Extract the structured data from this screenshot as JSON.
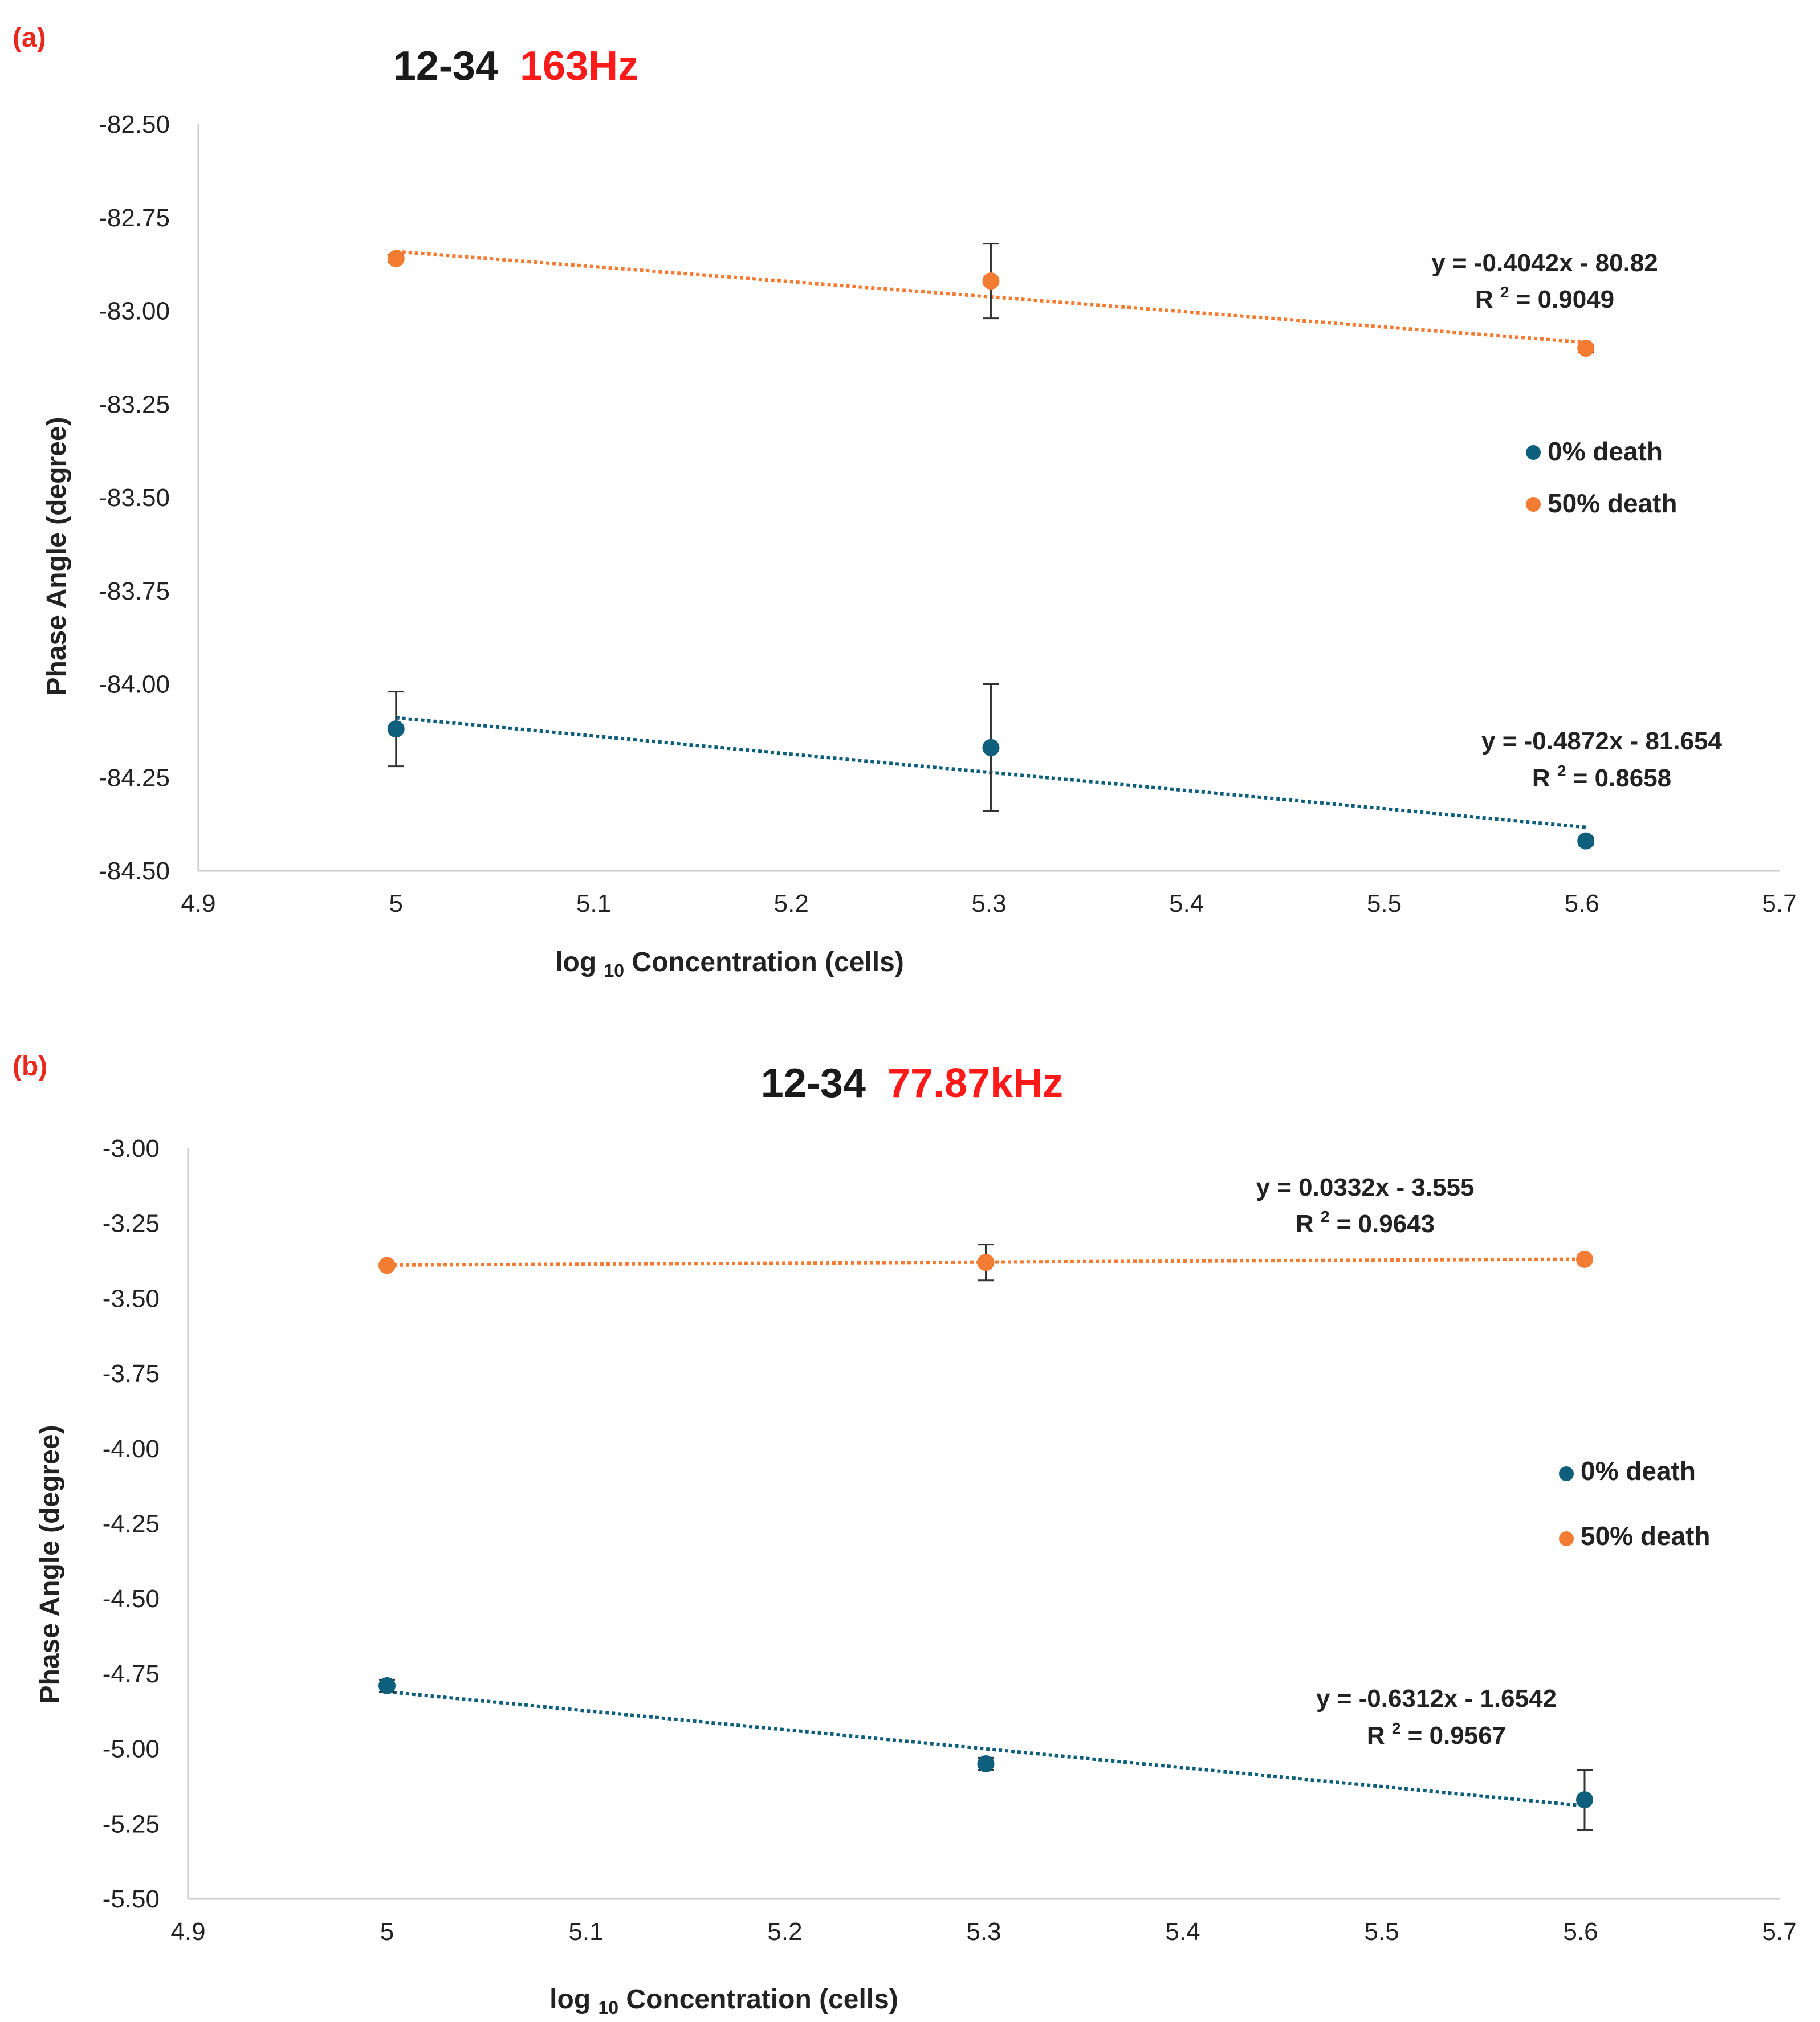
{
  "colors": {
    "series_0": "#0e5f7c",
    "series_50": "#f47b32",
    "panel_label": "#e8291c",
    "title_frequency": "#ff1a1a",
    "axis": "#cccccc",
    "text": "#1a1a1a",
    "error_bar": "#333333"
  },
  "chart_data": [
    {
      "type": "scatter",
      "panel_label": "(a)",
      "title_prefix": "12-34",
      "title_frequency": "163Hz",
      "xlabel_log": "log",
      "xlabel_sub": "10",
      "xlabel_rest": " Concentration (cells)",
      "ylabel": "Phase Angle (degree)",
      "xlim": [
        4.9,
        5.7
      ],
      "ylim": [
        -84.5,
        -82.5
      ],
      "x_ticks": [
        4.9,
        5.0,
        5.1,
        5.2,
        5.3,
        5.4,
        5.5,
        5.6,
        5.7
      ],
      "x_tick_labels": [
        "4.9",
        "5",
        "5.1",
        "5.2",
        "5.3",
        "5.4",
        "5.5",
        "5.6",
        "5.7"
      ],
      "y_ticks": [
        -82.5,
        -82.75,
        -83.0,
        -83.25,
        -83.5,
        -83.75,
        -84.0,
        -84.25,
        -84.5
      ],
      "y_tick_labels": [
        "-82.50",
        "-82.75",
        "-83.00",
        "-83.25",
        "-83.50",
        "-83.75",
        "-84.00",
        "-84.25",
        "-84.50"
      ],
      "legend": [
        "0% death",
        "50% death"
      ],
      "series": [
        {
          "name": "0% death",
          "x": [
            5.0,
            5.301,
            5.602
          ],
          "y": [
            -84.12,
            -84.17,
            -84.42
          ],
          "err": [
            0.1,
            0.17,
            0.01
          ],
          "trend": {
            "slope": -0.4872,
            "intercept": -81.654
          },
          "eq_line1": "y = -0.4872x - 81.654",
          "eq_r2_prefix": "R",
          "eq_r2_sup": "2",
          "eq_r2_value": " = 0.8658"
        },
        {
          "name": "50% death",
          "x": [
            5.0,
            5.301,
            5.602
          ],
          "y": [
            -82.86,
            -82.92,
            -83.1
          ],
          "err": [
            0.01,
            0.1,
            0.01
          ],
          "trend": {
            "slope": -0.4042,
            "intercept": -80.82
          },
          "eq_line1": "y = -0.4042x - 80.82",
          "eq_r2_prefix": "R",
          "eq_r2_sup": "2",
          "eq_r2_value": " = 0.9049"
        }
      ]
    },
    {
      "type": "scatter",
      "panel_label": "(b)",
      "title_prefix": "12-34",
      "title_frequency": "77.87kHz",
      "xlabel_log": "log",
      "xlabel_sub": "10",
      "xlabel_rest": " Concentration (cells)",
      "ylabel": "Phase Angle (degree)",
      "xlim": [
        4.9,
        5.7
      ],
      "ylim": [
        -5.5,
        -3.0
      ],
      "x_ticks": [
        4.9,
        5.0,
        5.1,
        5.2,
        5.3,
        5.4,
        5.5,
        5.6,
        5.7
      ],
      "x_tick_labels": [
        "4.9",
        "5",
        "5.1",
        "5.2",
        "5.3",
        "5.4",
        "5.5",
        "5.6",
        "5.7"
      ],
      "y_ticks": [
        -3.0,
        -3.25,
        -3.5,
        -3.75,
        -4.0,
        -4.25,
        -4.5,
        -4.75,
        -5.0,
        -5.25,
        -5.5
      ],
      "y_tick_labels": [
        "-3.00",
        "-3.25",
        "-3.50",
        "-3.75",
        "-4.00",
        "-4.25",
        "-4.50",
        "-4.75",
        "-5.00",
        "-5.25",
        "-5.50"
      ],
      "legend": [
        "0% death",
        "50% death"
      ],
      "series": [
        {
          "name": "0% death",
          "x": [
            5.0,
            5.301,
            5.602
          ],
          "y": [
            -4.79,
            -5.05,
            -5.17
          ],
          "err": [
            0.02,
            0.02,
            0.1
          ],
          "trend": {
            "slope": -0.6312,
            "intercept": -1.6542
          },
          "eq_line1": "y = -0.6312x - 1.6542",
          "eq_r2_prefix": "R",
          "eq_r2_sup": "2",
          "eq_r2_value": " = 0.9567"
        },
        {
          "name": "50% death",
          "x": [
            5.0,
            5.301,
            5.602
          ],
          "y": [
            -3.39,
            -3.38,
            -3.37
          ],
          "err": [
            0.005,
            0.06,
            0.005
          ],
          "trend": {
            "slope": 0.0332,
            "intercept": -3.555
          },
          "eq_line1": "y = 0.0332x - 3.555",
          "eq_r2_prefix": "R",
          "eq_r2_sup": "2",
          "eq_r2_value": " = 0.9643"
        }
      ]
    }
  ]
}
